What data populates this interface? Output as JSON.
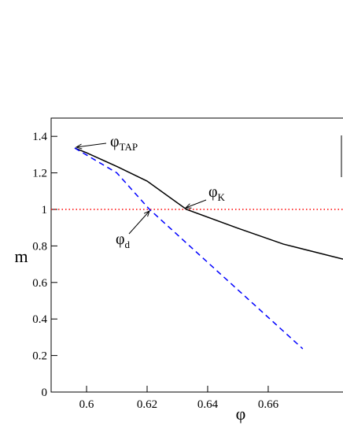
{
  "chart_data": {
    "type": "line",
    "x_label": "φ",
    "y_label": "m",
    "xlim": [
      0.5883,
      0.6847
    ],
    "ylim": [
      0,
      1.5
    ],
    "xticks": [
      0.6,
      0.62,
      0.64,
      0.66
    ],
    "yticks": [
      0,
      0.2,
      0.4,
      0.6,
      0.8,
      1,
      1.2,
      1.4
    ],
    "hline": {
      "value": 1,
      "color": "#ff0000"
    },
    "series": [
      {
        "color": "#000000",
        "dash": false,
        "x": [
          0.5961,
          0.6,
          0.61,
          0.62,
          0.633,
          0.65,
          0.665,
          0.6847
        ],
        "values": [
          1.336,
          1.31,
          1.235,
          1.155,
          1.0,
          0.897,
          0.81,
          0.728
        ]
      },
      {
        "color": "#0000ff",
        "dash": true,
        "x": [
          0.5961,
          0.61,
          0.6208,
          0.64,
          0.6714
        ],
        "values": [
          1.336,
          1.2,
          1.0,
          0.71,
          0.237
        ]
      }
    ],
    "annotations": [
      {
        "text": "φ",
        "sub": "TAP"
      },
      {
        "text": "φ",
        "sub": "K"
      },
      {
        "text": "φ",
        "sub": "d"
      }
    ]
  }
}
